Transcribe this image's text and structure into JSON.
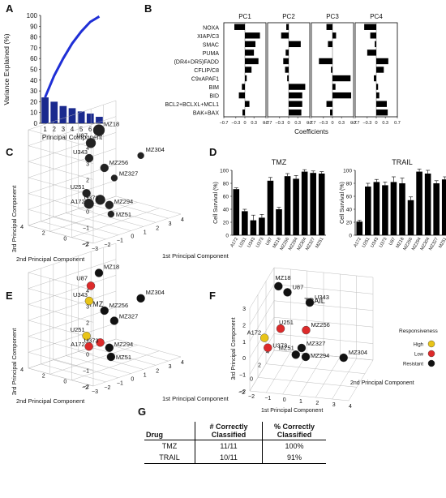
{
  "panel_labels": [
    "A",
    "B",
    "C",
    "D",
    "E",
    "F",
    "G"
  ],
  "colors": {
    "bar_blue": "#1a2a8e",
    "curve_blue": "#1f2fd6",
    "black": "#111111",
    "high": "#e8c418",
    "low": "#dd2a2a",
    "resistant": "#111111",
    "grid": "#b5b5b5"
  },
  "panel_a": {
    "ylabel": "Variance Explained (%)",
    "xlabel": "Principal Component",
    "yticks": [
      "0",
      "10",
      "20",
      "30",
      "40",
      "50",
      "60",
      "70",
      "80",
      "90",
      "100"
    ],
    "xticks": [
      "1",
      "2",
      "3",
      "4",
      "5",
      "6",
      "7"
    ]
  },
  "panel_b": {
    "titles": [
      "PC1",
      "PC2",
      "PC3",
      "PC4"
    ],
    "rows": [
      "NOXA",
      "XIAP/C3",
      "SMAC",
      "PUMA",
      "(DR4+DR5)FADD",
      "CFLIP/C8",
      "C9xAPAF1",
      "BIM",
      "BID",
      "BCL2+BCLXL+MCL1",
      "BAK+BAX"
    ],
    "xticks": [
      "−0.7",
      "−0.3",
      "0",
      "0.3",
      "0.7"
    ],
    "xlabel": "Coefficients"
  },
  "panel_c": {
    "zlabel": "3rd Principal Component",
    "ylabel": "2nd Principal Component",
    "xlabel": "1st Principal Component",
    "zticks": [
      "−2",
      "−1",
      "0",
      "1",
      "2",
      "3",
      "4"
    ],
    "yticks": [
      "−2",
      "0",
      "2",
      "4"
    ],
    "xticks": [
      "−3",
      "−2",
      "−1",
      "0",
      "1",
      "2",
      "3",
      "4"
    ]
  },
  "panel_d": {
    "title_tmz": "TMZ",
    "title_trail": "TRAIL",
    "ylabel": "Cell Survival (%)",
    "yticks": [
      "0",
      "20",
      "40",
      "60",
      "80",
      "100"
    ],
    "cells": [
      "A172",
      "U251",
      "U343",
      "U373",
      "U87",
      "MZ18",
      "MZ256",
      "MZ294",
      "MZ304",
      "MZ327",
      "MZ51"
    ]
  },
  "panel_e": {
    "title": "TMZ",
    "zlabel": "3rd Principal Component",
    "ylabel": "2nd Principal Component",
    "xlabel": "1st Principal Component",
    "zticks": [
      "−2",
      "−1",
      "0",
      "1",
      "2",
      "3",
      "4"
    ],
    "yticks": [
      "−2",
      "0",
      "2",
      "4"
    ],
    "xticks": [
      "−3",
      "−2",
      "−1",
      "0",
      "1",
      "2",
      "3",
      "4"
    ]
  },
  "panel_f": {
    "title": "TRAIL",
    "zlabel": "3rd Principal Component",
    "ylabel": "2nd Principal Component",
    "xlabel": "1st Principal Component",
    "zticks": [
      "−2",
      "−1",
      "0",
      "1",
      "2",
      "3"
    ],
    "yticks": [
      "−2",
      "0",
      "2",
      "4"
    ],
    "xticks": [
      "−2",
      "−1",
      "0",
      "1",
      "2",
      "3",
      "4"
    ],
    "legend_title": "Responsiveness",
    "legend_items": [
      "High",
      "Low",
      "Resistant"
    ]
  },
  "table_g": {
    "headers": [
      "Drug",
      "# Correctly Classified",
      "% Correctly Classified"
    ],
    "rows": [
      {
        "drug": "TMZ",
        "count": "11/11",
        "pct": "100%"
      },
      {
        "drug": "TRAIL",
        "count": "10/11",
        "pct": "91%"
      }
    ]
  },
  "chart_data": [
    {
      "panel": "A",
      "type": "bar",
      "categories": [
        "1",
        "2",
        "3",
        "4",
        "5",
        "6",
        "7"
      ],
      "values": [
        24,
        20,
        16,
        14,
        11,
        9,
        6
      ],
      "line": [
        24,
        44,
        60,
        74,
        85,
        94,
        99
      ],
      "xlabel": "Principal Component",
      "ylabel": "Variance Explained (%)",
      "ylim": [
        0,
        100
      ]
    },
    {
      "panel": "B",
      "type": "bar",
      "orientation": "horizontal",
      "categories": [
        "NOXA",
        "XIAP/C3",
        "SMAC",
        "PUMA",
        "(DR4+DR5)FADD",
        "CFLIP/C8",
        "C9xAPAF1",
        "BIM",
        "BID",
        "BCL2+BCLXL+MCL1",
        "BAK+BAX"
      ],
      "series": [
        {
          "name": "PC1",
          "values": [
            -0.35,
            0.5,
            0.35,
            0.3,
            0.45,
            0.22,
            0.06,
            -0.1,
            -0.2,
            0.15,
            -0.08
          ]
        },
        {
          "name": "PC2",
          "values": [
            -0.08,
            -0.25,
            0.4,
            -0.1,
            -0.18,
            -0.12,
            -0.05,
            0.55,
            0.45,
            0.45,
            0.42
          ]
        },
        {
          "name": "PC3",
          "values": [
            -0.2,
            0.12,
            -0.15,
            0.0,
            -0.45,
            -0.05,
            0.6,
            0.1,
            0.62,
            -0.2,
            -0.08
          ]
        },
        {
          "name": "PC4",
          "values": [
            -0.4,
            -0.2,
            -0.05,
            -0.3,
            0.4,
            0.25,
            -0.08,
            0.06,
            0.1,
            0.35,
            0.38
          ]
        }
      ],
      "xlim": [
        -0.7,
        0.7
      ],
      "xlabel": "Coefficients"
    },
    {
      "panel": "D-TMZ",
      "type": "bar",
      "categories": [
        "A172",
        "U251",
        "U343",
        "U373",
        "U87",
        "MZ18",
        "MZ256",
        "MZ294",
        "MZ304",
        "MZ327",
        "MZ51"
      ],
      "values": [
        71,
        37,
        23,
        27,
        84,
        40,
        91,
        87,
        98,
        96,
        95
      ],
      "errors": [
        2,
        3,
        8,
        5,
        5,
        3,
        4,
        5,
        3,
        3,
        3
      ],
      "ylabel": "Cell Survival (%)",
      "ylim": [
        0,
        100
      ]
    },
    {
      "panel": "D-TRAIL",
      "type": "bar",
      "categories": [
        "A172",
        "U251",
        "U343",
        "U373",
        "U87",
        "MZ18",
        "MZ256",
        "MZ294",
        "MZ304",
        "MZ327",
        "MZ51"
      ],
      "values": [
        21,
        75,
        82,
        77,
        82,
        80,
        54,
        98,
        95,
        80,
        86
      ],
      "errors": [
        2,
        5,
        4,
        5,
        8,
        8,
        5,
        4,
        5,
        4,
        4
      ],
      "ylabel": "Cell Survival (%)",
      "ylim": [
        0,
        100
      ]
    }
  ],
  "scatter_c": [
    {
      "name": "U343",
      "size": 5
    },
    {
      "name": "U87",
      "size": 6
    },
    {
      "name": "MZ18",
      "size": 7
    },
    {
      "name": "MZ304",
      "size": 4
    },
    {
      "name": "MZ256",
      "size": 5
    },
    {
      "name": "MZ327",
      "size": 4
    },
    {
      "name": "U251",
      "size": 5
    },
    {
      "name": "A172",
      "size": 6
    },
    {
      "name": "U373",
      "size": 6
    },
    {
      "name": "MZ294",
      "size": 5
    },
    {
      "name": "MZ51",
      "size": 4
    }
  ],
  "scatter_e": [
    {
      "name": "U343",
      "resp": "high"
    },
    {
      "name": "U87",
      "resp": "low"
    },
    {
      "name": "MZ18",
      "resp": "resistant"
    },
    {
      "name": "MZ304",
      "resp": "resistant"
    },
    {
      "name": "MZ256",
      "resp": "resistant"
    },
    {
      "name": "MZ327",
      "resp": "resistant"
    },
    {
      "name": "U251",
      "resp": "high"
    },
    {
      "name": "A172",
      "resp": "low"
    },
    {
      "name": "U373",
      "resp": "low"
    },
    {
      "name": "MZ294",
      "resp": "resistant"
    },
    {
      "name": "MZ51",
      "resp": "resistant"
    }
  ],
  "scatter_f": [
    {
      "name": "MZ18",
      "resp": "resistant"
    },
    {
      "name": "U87",
      "resp": "resistant"
    },
    {
      "name": "U343",
      "resp": "resistant"
    },
    {
      "name": "U251",
      "resp": "low"
    },
    {
      "name": "MZ256",
      "resp": "low"
    },
    {
      "name": "A172",
      "resp": "high"
    },
    {
      "name": "U373",
      "resp": "low"
    },
    {
      "name": "MZ327",
      "resp": "resistant"
    },
    {
      "name": "MZ51",
      "resp": "resistant"
    },
    {
      "name": "MZ294",
      "resp": "resistant"
    },
    {
      "name": "MZ304",
      "resp": "resistant"
    }
  ]
}
